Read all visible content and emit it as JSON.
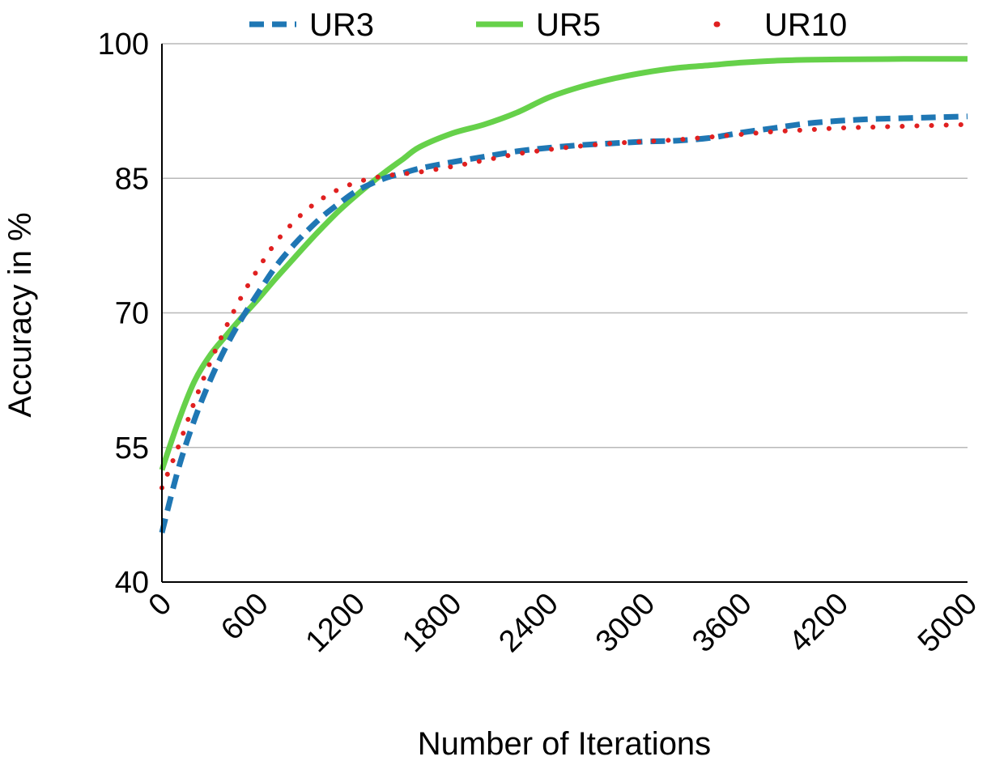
{
  "chart_data": {
    "type": "line",
    "title": "",
    "xlabel": "Number of Iterations",
    "ylabel": "Accuracy in %",
    "xlim": [
      0,
      5000
    ],
    "ylim": [
      40,
      100
    ],
    "x_ticks": [
      0,
      600,
      1200,
      1800,
      2400,
      3000,
      3600,
      4200,
      5000
    ],
    "x_tick_labels": [
      "0",
      "600",
      "1200",
      "1800",
      "2400",
      "3000",
      "3600",
      "4200",
      "5000"
    ],
    "y_ticks": [
      40,
      55,
      70,
      85,
      100
    ],
    "y_tick_labels": [
      "40",
      "55",
      "70",
      "85",
      "100"
    ],
    "grid": "horizontal",
    "legend_position": "top",
    "series": [
      {
        "name": "UR3",
        "color": "#1f77b4",
        "style": "dashed",
        "x": [
          0,
          100,
          200,
          300,
          400,
          500,
          600,
          700,
          800,
          900,
          1000,
          1100,
          1200,
          1300,
          1400,
          1500,
          1600,
          1800,
          2000,
          2200,
          2400,
          2600,
          2800,
          3000,
          3200,
          3400,
          3600,
          3800,
          4000,
          4200,
          4400,
          4600,
          4800,
          5000
        ],
        "y": [
          45.5,
          52.5,
          58.0,
          62.5,
          66.3,
          69.5,
          72.3,
          75.0,
          77.2,
          79.1,
          80.8,
          82.2,
          83.5,
          84.4,
          85.1,
          85.6,
          86.1,
          86.8,
          87.4,
          88.0,
          88.4,
          88.7,
          88.9,
          89.1,
          89.2,
          89.5,
          90.1,
          90.6,
          91.1,
          91.4,
          91.6,
          91.7,
          91.8,
          91.9
        ]
      },
      {
        "name": "UR5",
        "color": "#66d14a",
        "style": "solid",
        "x": [
          0,
          100,
          200,
          300,
          400,
          500,
          600,
          700,
          800,
          900,
          1000,
          1100,
          1200,
          1300,
          1400,
          1500,
          1600,
          1800,
          2000,
          2200,
          2400,
          2600,
          2800,
          3000,
          3200,
          3400,
          3600,
          3800,
          4000,
          4200,
          4400,
          4600,
          4800,
          5000
        ],
        "y": [
          52.5,
          57.8,
          62.3,
          65.3,
          67.5,
          69.6,
          71.6,
          73.7,
          75.7,
          77.7,
          79.6,
          81.4,
          83.0,
          84.5,
          85.9,
          87.2,
          88.5,
          90.0,
          91.0,
          92.3,
          94.0,
          95.2,
          96.1,
          96.8,
          97.3,
          97.6,
          97.9,
          98.1,
          98.2,
          98.25,
          98.28,
          98.3,
          98.3,
          98.3
        ]
      },
      {
        "name": "UR10",
        "color": "#e02020",
        "style": "dotted",
        "x": [
          0,
          100,
          200,
          300,
          400,
          500,
          600,
          700,
          800,
          900,
          1000,
          1100,
          1200,
          1300,
          1400,
          1500,
          1600,
          1800,
          2000,
          2200,
          2400,
          2600,
          2800,
          3000,
          3200,
          3400,
          3600,
          3800,
          4000,
          4200,
          4400,
          4600,
          4800,
          5000
        ],
        "y": [
          50.5,
          55.0,
          60.0,
          64.5,
          68.5,
          72.0,
          75.0,
          77.7,
          79.8,
          81.5,
          82.8,
          83.8,
          84.5,
          85.0,
          85.3,
          85.5,
          85.7,
          86.3,
          87.0,
          87.7,
          88.2,
          88.6,
          88.9,
          89.1,
          89.3,
          89.6,
          89.9,
          90.2,
          90.4,
          90.6,
          90.7,
          90.8,
          90.9,
          91.0
        ]
      }
    ]
  }
}
